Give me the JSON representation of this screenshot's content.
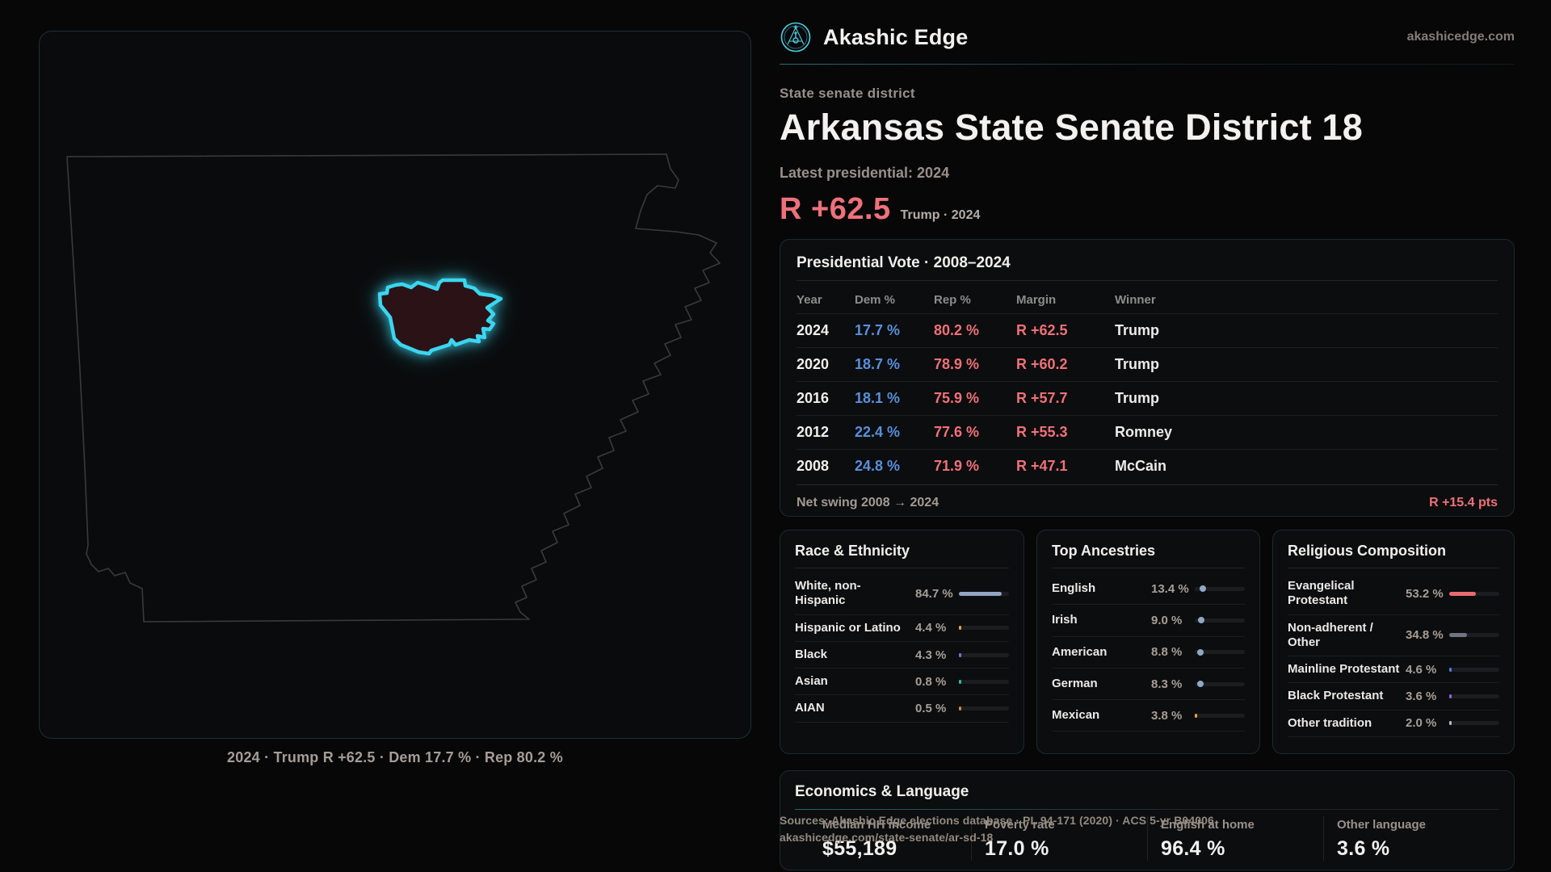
{
  "brand": {
    "name": "Akashic Edge",
    "domain": "akashicedge.com"
  },
  "accent": {
    "teal": "#3bd6ef",
    "red": "#ef717a",
    "blue": "#5a8fdc"
  },
  "page": {
    "eyebrow": "State senate district",
    "title": "Arkansas State Senate District 18",
    "latest_label": "Latest presidential: 2024",
    "headline_margin": "R +62.5",
    "headline_context": "Trump · 2024"
  },
  "map": {
    "caption": "2024 · Trump R +62.5 · Dem 17.7 % · Rep 80.2 %"
  },
  "presidential_table": {
    "title": "Presidential Vote · 2008–2024",
    "columns": {
      "year": "Year",
      "dem": "Dem %",
      "rep": "Rep %",
      "margin": "Margin",
      "winner": "Winner"
    },
    "rows": [
      {
        "year": "2024",
        "dem": "17.7 %",
        "rep": "80.2 %",
        "margin": "R +62.5",
        "winner": "Trump"
      },
      {
        "year": "2020",
        "dem": "18.7 %",
        "rep": "78.9 %",
        "margin": "R +60.2",
        "winner": "Trump"
      },
      {
        "year": "2016",
        "dem": "18.1 %",
        "rep": "75.9 %",
        "margin": "R +57.7",
        "winner": "Trump"
      },
      {
        "year": "2012",
        "dem": "22.4 %",
        "rep": "77.6 %",
        "margin": "R +55.3",
        "winner": "Romney"
      },
      {
        "year": "2008",
        "dem": "24.8 %",
        "rep": "71.9 %",
        "margin": "R +47.1",
        "winner": "McCain"
      }
    ],
    "footer_label": "Net swing 2008 → 2024",
    "footer_value": "R +15.4 pts"
  },
  "race_panel": {
    "title": "Race & Ethnicity",
    "rows": [
      {
        "label": "White, non-Hispanic",
        "value": "84.7 %",
        "pct": 84.7,
        "color": "#91a6c3"
      },
      {
        "label": "Hispanic or Latino",
        "value": "4.4 %",
        "pct": 4.4,
        "color": "#e9a23b"
      },
      {
        "label": "Black",
        "value": "4.3 %",
        "pct": 4.3,
        "color": "#8e63e8"
      },
      {
        "label": "Asian",
        "value": "0.8 %",
        "pct": 0.8,
        "color": "#35b8a5"
      },
      {
        "label": "AIAN",
        "value": "0.5 %",
        "pct": 0.5,
        "color": "#e0813a"
      }
    ]
  },
  "ancestry_panel": {
    "title": "Top Ancestries",
    "rows": [
      {
        "label": "English",
        "value": "13.4 %",
        "pct": 13.4,
        "color": "#8fa8c6",
        "style": "dot"
      },
      {
        "label": "Irish",
        "value": "9.0 %",
        "pct": 9.0,
        "color": "#8fa8c6",
        "style": "dot"
      },
      {
        "label": "American",
        "value": "8.8 %",
        "pct": 8.8,
        "color": "#8fa8c6",
        "style": "dot"
      },
      {
        "label": "German",
        "value": "8.3 %",
        "pct": 8.3,
        "color": "#8fa8c6",
        "style": "dot"
      },
      {
        "label": "Mexican",
        "value": "3.8 %",
        "pct": 3.8,
        "color": "#e9a23b",
        "style": "bar"
      }
    ]
  },
  "religion_panel": {
    "title": "Religious Composition",
    "rows": [
      {
        "label": "Evangelical Protestant",
        "value": "53.2 %",
        "pct": 53.2,
        "color": "#e96a70"
      },
      {
        "label": "Non-adherent / Other",
        "value": "34.8 %",
        "pct": 34.8,
        "color": "#6f7681"
      },
      {
        "label": "Mainline Protestant",
        "value": "4.6 %",
        "pct": 4.6,
        "color": "#4f7de8"
      },
      {
        "label": "Black Protestant",
        "value": "3.6 %",
        "pct": 3.6,
        "color": "#8e63e8"
      },
      {
        "label": "Other tradition",
        "value": "2.0 %",
        "pct": 2.0,
        "color": "#b9bcc0"
      }
    ]
  },
  "economics_panel": {
    "title": "Economics & Language",
    "stats": [
      {
        "label": "Median HH income",
        "value": "$55,189"
      },
      {
        "label": "Poverty rate",
        "value": "17.0 %"
      },
      {
        "label": "English at home",
        "value": "96.4 %"
      },
      {
        "label": "Other language",
        "value": "3.6 %"
      }
    ]
  },
  "footer": {
    "line1": "Sources: Akashic Edge elections database · PL 94-171 (2020) · ACS 5-yr B04006",
    "line2": "akashicedge.com/state-senate/ar-sd-18"
  }
}
